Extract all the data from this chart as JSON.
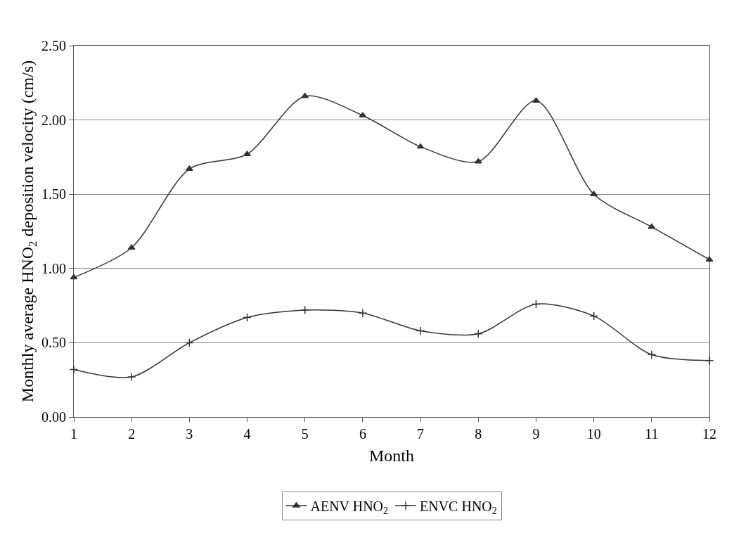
{
  "chart_data": {
    "type": "line",
    "xlabel": "Month",
    "ylabel": "Monthly average HNO$_{2}$ deposition velocity (cm/s)",
    "x": [
      1,
      2,
      3,
      4,
      5,
      6,
      7,
      8,
      9,
      10,
      11,
      12
    ],
    "xlim": [
      1,
      12
    ],
    "xticks": [
      1,
      2,
      3,
      4,
      5,
      6,
      7,
      8,
      9,
      10,
      11,
      12
    ],
    "ylim": [
      0,
      2.5
    ],
    "yticks": [
      {
        "value": 0,
        "label": "0.00"
      },
      {
        "value": 0.5,
        "label": "0.50"
      },
      {
        "value": 1,
        "label": "1.00"
      },
      {
        "value": 1.5,
        "label": "1.50"
      },
      {
        "value": 2,
        "label": "2.00"
      },
      {
        "value": 2.5,
        "label": "2.50"
      }
    ],
    "grid": "y",
    "legend": "bottom",
    "line_style": "solid",
    "series": [
      {
        "name": "AENV HNO$_{2}$",
        "color": "#333333",
        "marker": "triangle",
        "values": [
          0.94,
          1.14,
          1.67,
          1.77,
          2.16,
          2.03,
          1.82,
          1.72,
          2.13,
          1.5,
          1.28,
          1.06
        ]
      },
      {
        "name": "ENVC HNO$_{2}$",
        "color": "#333333",
        "marker": "cross",
        "values": [
          0.32,
          0.27,
          0.5,
          0.67,
          0.72,
          0.7,
          0.58,
          0.56,
          0.76,
          0.68,
          0.42,
          0.38
        ]
      }
    ]
  }
}
